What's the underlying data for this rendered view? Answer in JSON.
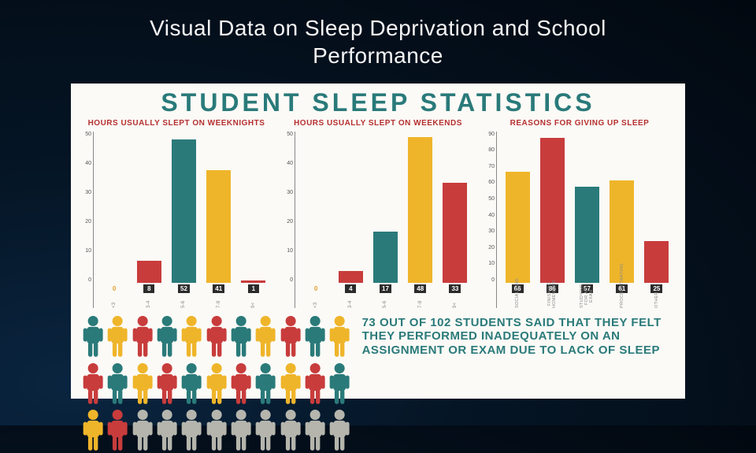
{
  "slide_title": "Visual Data on Sleep Deprivation and School Performance",
  "infographic_title": "STUDENT SLEEP STATISTICS",
  "colors": {
    "teal": "#2a7a7a",
    "red": "#c83c3c",
    "yellow": "#efb52a",
    "grey": "#b5b5ad",
    "title_red": "#b53030",
    "bg": "#fbfaf6"
  },
  "chart1": {
    "title": "HOURS USUALLY SLEPT ON WEEKNIGHTS",
    "ylim": [
      0,
      55
    ],
    "ytick_step": 10,
    "categories": [
      "<3",
      "3-4",
      "5-6",
      "7-8",
      "9<"
    ],
    "values": [
      0,
      8,
      52,
      41,
      1
    ],
    "bar_colors": [
      "#efb52a",
      "#c83c3c",
      "#2a7a7a",
      "#efb52a",
      "#c83c3c"
    ]
  },
  "chart2": {
    "title": "HOURS USUALLY SLEPT ON WEEKENDS",
    "ylim": [
      0,
      50
    ],
    "ytick_step": 10,
    "categories": [
      "<3",
      "3-4",
      "5-6",
      "7-8",
      "9<"
    ],
    "values": [
      0,
      4,
      17,
      48,
      33
    ],
    "bar_colors": [
      "#efb52a",
      "#c83c3c",
      "#2a7a7a",
      "#efb52a",
      "#c83c3c"
    ]
  },
  "chart3": {
    "title": "REASONS FOR GIVING UP SLEEP",
    "ylim": [
      0,
      90
    ],
    "ytick_step": 10,
    "categories": [
      "SOCIALIZING",
      "FINISHING HOMEWORK",
      "STUDYING FOR AN EXAM",
      "PROCRASTINATING",
      "OTHER"
    ],
    "values": [
      66,
      86,
      57,
      61,
      25
    ],
    "bar_colors": [
      "#efb52a",
      "#c83c3c",
      "#2a7a7a",
      "#efb52a",
      "#c83c3c"
    ]
  },
  "people": {
    "rows": 3,
    "cols": 11,
    "colored_count": 24,
    "colors_cycle": [
      "#2a7a7a",
      "#efb52a",
      "#c83c3c"
    ],
    "grey": "#b5b5ad"
  },
  "callout": "73 OUT OF 102 STUDENTS SAID THAT THEY FELT THEY PERFORMED INADEQUATELY ON AN ASSIGNMENT OR EXAM DUE TO LACK OF SLEEP"
}
